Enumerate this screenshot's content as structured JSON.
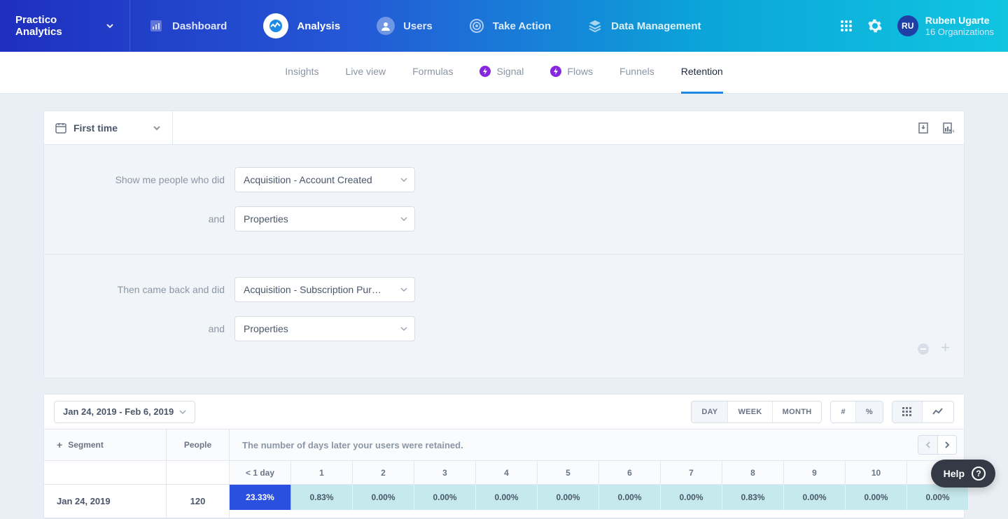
{
  "brand": "Practico Analytics",
  "nav": [
    {
      "label": "Dashboard",
      "active": false
    },
    {
      "label": "Analysis",
      "active": true
    },
    {
      "label": "Users",
      "active": false
    },
    {
      "label": "Take Action",
      "active": false
    },
    {
      "label": "Data Management",
      "active": false
    }
  ],
  "user": {
    "initials": "RU",
    "name": "Ruben Ugarte",
    "org": "16 Organizations"
  },
  "subnav": {
    "items": [
      {
        "label": "Insights",
        "badge": false,
        "active": false
      },
      {
        "label": "Live view",
        "badge": false,
        "active": false
      },
      {
        "label": "Formulas",
        "badge": false,
        "active": false
      },
      {
        "label": "Signal",
        "badge": true,
        "active": false
      },
      {
        "label": "Flows",
        "badge": true,
        "active": false
      },
      {
        "label": "Funnels",
        "badge": false,
        "active": false
      },
      {
        "label": "Retention",
        "badge": false,
        "active": true
      }
    ]
  },
  "filters": {
    "mode_label": "First time",
    "block1": {
      "label1": "Show me people who did",
      "select1": "Acquisition - Account Created",
      "label2": "and",
      "select2": "Properties"
    },
    "block2": {
      "label1": "Then came back and did",
      "select1": "Acquisition - Subscription Pur…",
      "label2": "and",
      "select2": "Properties"
    }
  },
  "results": {
    "date_range": "Jan 24, 2019 - Feb 6, 2019",
    "granularity": {
      "options": [
        "DAY",
        "WEEK",
        "MONTH"
      ],
      "active": "DAY"
    },
    "format": {
      "options": [
        "#",
        "%"
      ],
      "active": "%"
    },
    "view": {
      "options": [
        "grid",
        "line"
      ],
      "active": "grid"
    },
    "segment_label": "Segment",
    "people_label": "People",
    "banner": "The number of days later your users were retained.",
    "columns": [
      "< 1 day",
      "1",
      "2",
      "3",
      "4",
      "5",
      "6",
      "7",
      "8",
      "9",
      "10",
      "1"
    ],
    "rows": [
      {
        "label": "Jan 24, 2019",
        "people": "120",
        "values": [
          "23.33%",
          "0.83%",
          "0.00%",
          "0.00%",
          "0.00%",
          "0.00%",
          "0.00%",
          "0.00%",
          "0.83%",
          "0.00%",
          "0.00%",
          "0.00%"
        ],
        "hot": [
          true,
          false,
          false,
          false,
          false,
          false,
          false,
          false,
          false,
          false,
          false,
          false
        ]
      }
    ],
    "colors": {
      "hot": "#2a50e0",
      "cool": "#c6e9ed"
    }
  },
  "help": "Help"
}
